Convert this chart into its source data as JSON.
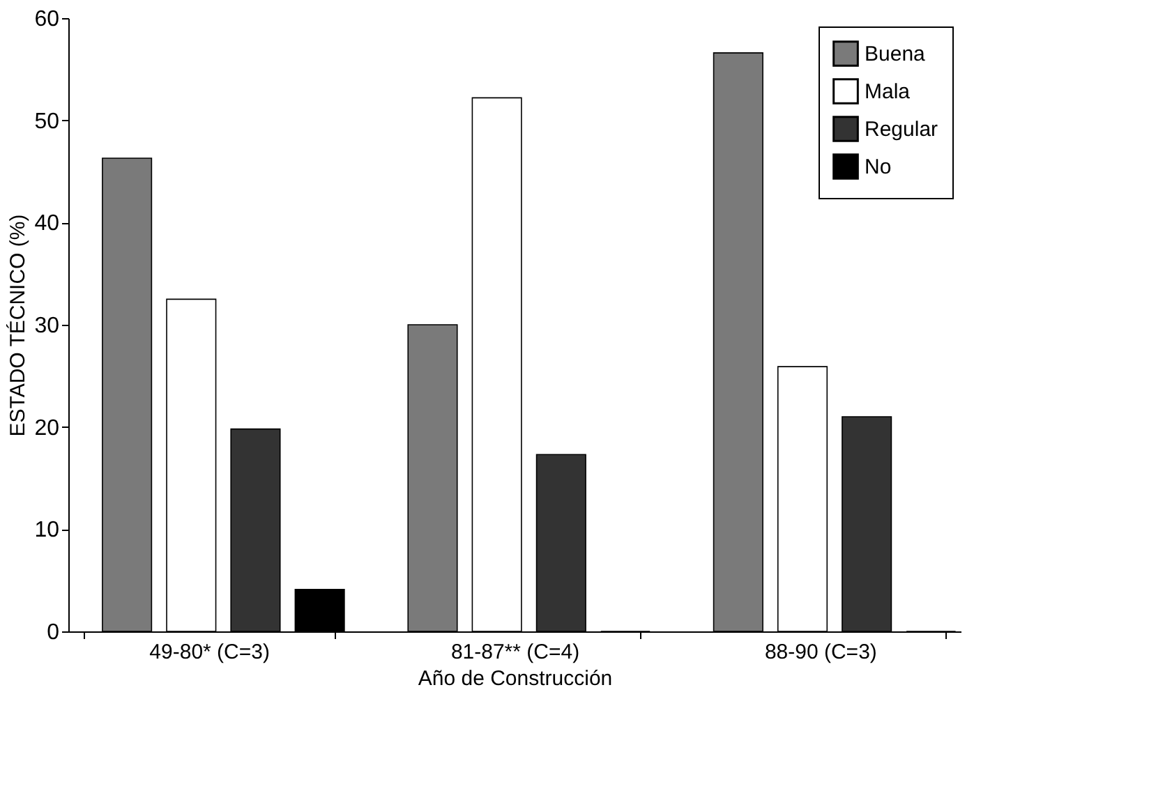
{
  "chart_data": {
    "type": "bar",
    "xlabel": "Año de Construcción",
    "ylabel": "ESTADO TÉCNICO (%)",
    "categories": [
      "49-80* (C=3)",
      "81-87** (C=4)",
      "88-90 (C=3)"
    ],
    "series": [
      {
        "name": "Buena",
        "color": "#7a7a7a",
        "values": [
          46.3,
          30.0,
          56.6
        ]
      },
      {
        "name": "Mala",
        "color": "#ffffff",
        "values": [
          32.5,
          52.2,
          25.9
        ]
      },
      {
        "name": "Regular",
        "color": "#333333",
        "values": [
          19.8,
          17.3,
          21.0
        ]
      },
      {
        "name": "No",
        "color": "#000000",
        "values": [
          4.1,
          0,
          0
        ]
      }
    ],
    "ylim": [
      0,
      60
    ],
    "yticks": [
      0,
      10,
      20,
      30,
      40,
      50,
      60
    ],
    "grid": false,
    "legend": "top right"
  }
}
